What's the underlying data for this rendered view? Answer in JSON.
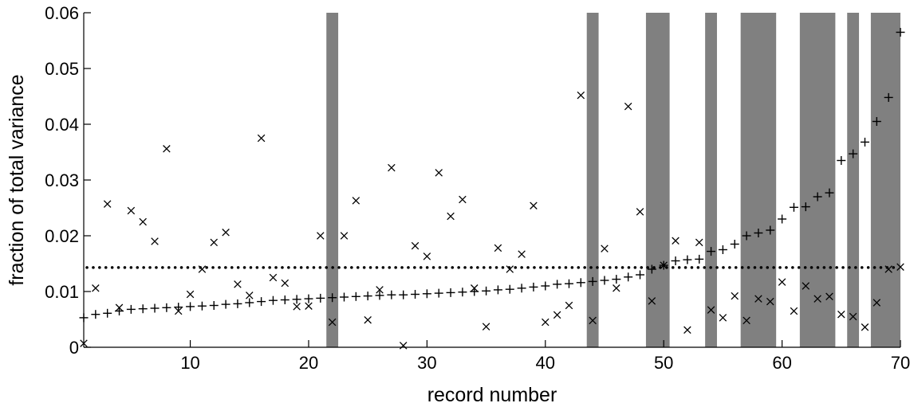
{
  "chart_data": {
    "type": "scatter",
    "title": "",
    "xlabel": "record number",
    "ylabel": "fraction of total variance",
    "xlim": [
      1,
      70
    ],
    "ylim": [
      0,
      0.06
    ],
    "xticks": [
      10,
      20,
      30,
      40,
      50,
      60,
      70
    ],
    "xtick_labels": [
      "10",
      "20",
      "30",
      "40",
      "50",
      "60",
      "70"
    ],
    "yticks": [
      0,
      0.01,
      0.02,
      0.03,
      0.04,
      0.05,
      0.06
    ],
    "ytick_labels": [
      "0",
      "0.01",
      "0.02",
      "0.03",
      "0.04",
      "0.05",
      "0.06"
    ],
    "grid": false,
    "shaded_x_ranges": [
      [
        21.5,
        22.5
      ],
      [
        43.5,
        44.5
      ],
      [
        48.5,
        50.5
      ],
      [
        53.5,
        54.5
      ],
      [
        56.5,
        59.5
      ],
      [
        61.5,
        64.5
      ],
      [
        65.5,
        66.5
      ],
      [
        67.5,
        70.5
      ]
    ],
    "shade_color": "#808080",
    "reference_line": {
      "y": 0.0143,
      "style": "dotted"
    },
    "series": [
      {
        "marker": "+",
        "x": [
          1,
          2,
          3,
          4,
          5,
          6,
          7,
          8,
          9,
          10,
          11,
          12,
          13,
          14,
          15,
          16,
          17,
          18,
          19,
          20,
          21,
          22,
          23,
          24,
          25,
          26,
          27,
          28,
          29,
          30,
          31,
          32,
          33,
          34,
          35,
          36,
          37,
          38,
          39,
          40,
          41,
          42,
          43,
          44,
          45,
          46,
          47,
          48,
          49,
          50,
          51,
          52,
          53,
          54,
          55,
          56,
          57,
          58,
          59,
          60,
          61,
          62,
          63,
          64,
          65,
          66,
          67,
          68,
          69,
          70
        ],
        "values": [
          0.0053,
          0.0059,
          0.0061,
          0.0065,
          0.0068,
          0.0069,
          0.007,
          0.0071,
          0.0072,
          0.0073,
          0.0074,
          0.0075,
          0.0077,
          0.0078,
          0.008,
          0.0082,
          0.0084,
          0.0085,
          0.0086,
          0.0087,
          0.0088,
          0.0089,
          0.009,
          0.0091,
          0.0092,
          0.0093,
          0.0094,
          0.0094,
          0.0095,
          0.0096,
          0.0097,
          0.0098,
          0.0099,
          0.01,
          0.0101,
          0.0103,
          0.0104,
          0.0106,
          0.0108,
          0.011,
          0.0113,
          0.0114,
          0.0116,
          0.0118,
          0.012,
          0.0122,
          0.0126,
          0.013,
          0.014,
          0.0147,
          0.0155,
          0.0157,
          0.0158,
          0.0172,
          0.0175,
          0.0185,
          0.02,
          0.0205,
          0.021,
          0.023,
          0.0251,
          0.0252,
          0.027,
          0.0277,
          0.0335,
          0.0347,
          0.0368,
          0.0405,
          0.0448,
          0.0565
        ]
      },
      {
        "marker": "x",
        "x": [
          1,
          2,
          3,
          4,
          5,
          6,
          7,
          8,
          9,
          10,
          11,
          12,
          13,
          14,
          15,
          16,
          17,
          18,
          19,
          20,
          21,
          22,
          23,
          24,
          25,
          26,
          27,
          28,
          29,
          30,
          31,
          32,
          33,
          34,
          35,
          36,
          37,
          38,
          39,
          40,
          41,
          42,
          43,
          44,
          45,
          46,
          47,
          48,
          49,
          50,
          51,
          52,
          53,
          54,
          55,
          56,
          57,
          58,
          59,
          60,
          61,
          62,
          63,
          64,
          65,
          66,
          67,
          68,
          69,
          70
        ],
        "values": [
          0.0007,
          0.0106,
          0.0257,
          0.0071,
          0.0245,
          0.0225,
          0.019,
          0.0356,
          0.0065,
          0.0095,
          0.014,
          0.0188,
          0.0206,
          0.0113,
          0.0093,
          0.0375,
          0.0125,
          0.0115,
          0.0073,
          0.0074,
          0.02,
          0.0045,
          0.02,
          0.0263,
          0.0049,
          0.0103,
          0.0322,
          0.0003,
          0.0182,
          0.0163,
          0.0313,
          0.0235,
          0.0265,
          0.0106,
          0.0037,
          0.0178,
          0.014,
          0.0167,
          0.0254,
          0.0045,
          0.0058,
          0.0075,
          0.0452,
          0.0048,
          0.0177,
          0.0106,
          0.0432,
          0.0243,
          0.0083,
          0.0147,
          0.0191,
          0.0031,
          0.0188,
          0.0067,
          0.0053,
          0.0092,
          0.0048,
          0.0087,
          0.0082,
          0.0117,
          0.0065,
          0.011,
          0.0087,
          0.0091,
          0.0059,
          0.0055,
          0.0036,
          0.008,
          0.014,
          0.0144
        ]
      }
    ]
  }
}
